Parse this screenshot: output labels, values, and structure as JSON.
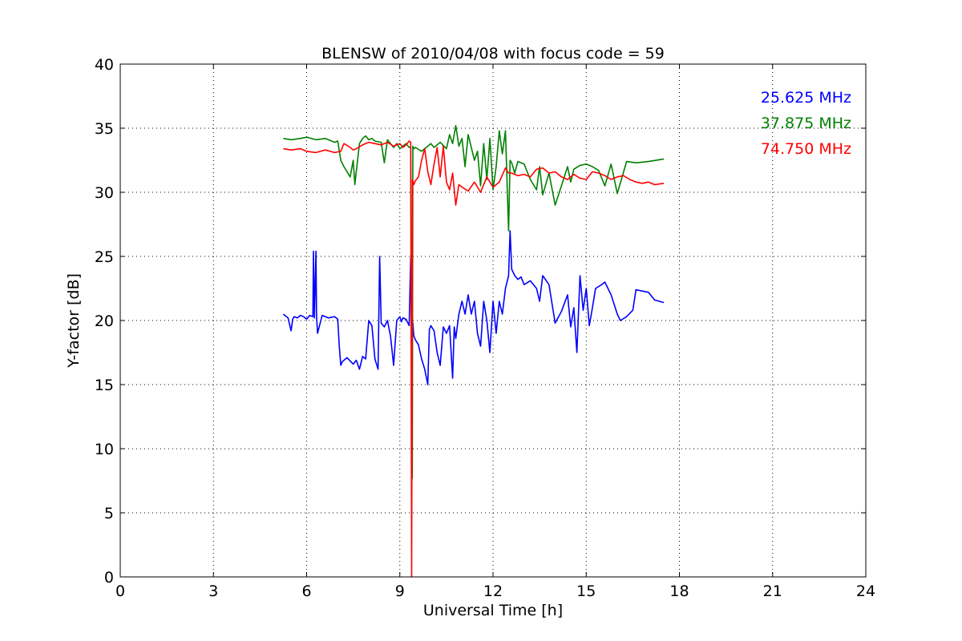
{
  "chart_data": {
    "type": "line",
    "title": "BLENSW of 2010/04/08 with focus code = 59",
    "xlabel": "Universal Time [h]",
    "ylabel": "Y-factor [dB]",
    "xlim": [
      0,
      24
    ],
    "ylim": [
      0,
      40
    ],
    "xticks": [
      0,
      3,
      6,
      9,
      12,
      15,
      18,
      21,
      24
    ],
    "yticks": [
      0,
      5,
      10,
      15,
      20,
      25,
      30,
      35,
      40
    ],
    "grid": true,
    "legend_position": "top-right",
    "series": [
      {
        "name": "25.625 MHz",
        "color": "#0000ff",
        "x": [
          5.25,
          5.4,
          5.5,
          5.55,
          5.6,
          5.7,
          5.8,
          5.9,
          6.0,
          6.1,
          6.2,
          6.22,
          6.25,
          6.3,
          6.32,
          6.35,
          6.5,
          6.7,
          6.9,
          7.0,
          7.05,
          7.1,
          7.15,
          7.3,
          7.5,
          7.6,
          7.7,
          7.8,
          7.9,
          8.0,
          8.1,
          8.2,
          8.3,
          8.35,
          8.4,
          8.5,
          8.6,
          8.7,
          8.8,
          8.9,
          9.0,
          9.05,
          9.1,
          9.2,
          9.3,
          9.35,
          9.4,
          9.42,
          9.45,
          9.5,
          9.6,
          9.7,
          9.8,
          9.9,
          9.95,
          10.0,
          10.05,
          10.1,
          10.2,
          10.3,
          10.4,
          10.5,
          10.6,
          10.7,
          10.75,
          10.8,
          10.9,
          11.0,
          11.1,
          11.2,
          11.3,
          11.4,
          11.5,
          11.6,
          11.7,
          11.8,
          11.9,
          12.0,
          12.1,
          12.2,
          12.3,
          12.4,
          12.5,
          12.55,
          12.6,
          12.7,
          12.8,
          12.9,
          13.0,
          13.2,
          13.4,
          13.5,
          13.6,
          13.8,
          14.0,
          14.2,
          14.4,
          14.5,
          14.6,
          14.7,
          14.8,
          14.9,
          15.0,
          15.1,
          15.2,
          15.3,
          15.5,
          15.6,
          15.8,
          16.0,
          16.1,
          16.3,
          16.5,
          16.6,
          16.8,
          17.0,
          17.2,
          17.5
        ],
        "y": [
          20.5,
          20.2,
          19.2,
          20.1,
          20.3,
          20.2,
          20.4,
          20.3,
          20.1,
          20.4,
          20.3,
          25.4,
          20.2,
          25.4,
          20.3,
          19.0,
          20.4,
          20.2,
          20.3,
          20.1,
          18.0,
          16.5,
          16.8,
          17.1,
          16.6,
          16.9,
          16.2,
          17.2,
          17.0,
          20.0,
          19.6,
          17.0,
          16.2,
          25.0,
          19.8,
          19.5,
          20.0,
          18.8,
          16.5,
          20.0,
          20.3,
          19.9,
          20.2,
          20.1,
          19.6,
          24.9,
          20.0,
          19.8,
          18.8,
          18.5,
          18.1,
          17.0,
          16.2,
          15.0,
          19.3,
          19.6,
          19.4,
          19.2,
          17.5,
          16.5,
          19.5,
          19.0,
          19.6,
          15.5,
          19.5,
          18.6,
          20.5,
          21.5,
          20.5,
          22.0,
          20.5,
          21.5,
          19.0,
          18.0,
          21.5,
          20.0,
          17.5,
          21.5,
          19.0,
          21.5,
          20.5,
          22.5,
          23.5,
          27.0,
          24.0,
          23.5,
          23.2,
          23.4,
          22.8,
          23.1,
          22.5,
          21.5,
          23.5,
          22.8,
          19.8,
          20.7,
          22.0,
          19.5,
          21.0,
          17.5,
          23.5,
          20.8,
          22.5,
          19.6,
          21.0,
          22.5,
          22.8,
          23.0,
          22.0,
          20.5,
          20.0,
          20.3,
          20.8,
          22.4,
          22.3,
          22.2,
          21.6,
          21.4
        ]
      },
      {
        "name": "37.875 MHz",
        "color": "#008000",
        "x": [
          5.25,
          5.5,
          5.8,
          6.0,
          6.3,
          6.6,
          6.9,
          7.0,
          7.1,
          7.2,
          7.4,
          7.5,
          7.55,
          7.7,
          7.8,
          7.9,
          8.0,
          8.1,
          8.2,
          8.4,
          8.5,
          8.6,
          8.7,
          8.8,
          8.9,
          9.0,
          9.1,
          9.2,
          9.3,
          9.35,
          9.4,
          9.42,
          9.45,
          9.5,
          9.7,
          9.9,
          10.0,
          10.1,
          10.3,
          10.5,
          10.6,
          10.7,
          10.8,
          10.9,
          11.0,
          11.1,
          11.2,
          11.4,
          11.5,
          11.6,
          11.7,
          11.8,
          11.9,
          12.0,
          12.1,
          12.2,
          12.3,
          12.4,
          12.5,
          12.55,
          12.6,
          12.7,
          12.8,
          13.0,
          13.2,
          13.4,
          13.5,
          13.6,
          13.8,
          14.0,
          14.2,
          14.4,
          14.5,
          14.6,
          14.8,
          15.0,
          15.2,
          15.4,
          15.6,
          15.8,
          16.0,
          16.3,
          16.6,
          17.0,
          17.5
        ],
        "y": [
          34.2,
          34.1,
          34.2,
          34.3,
          34.1,
          34.2,
          33.9,
          34.0,
          32.5,
          32.0,
          31.2,
          32.5,
          30.6,
          33.8,
          34.2,
          34.4,
          34.1,
          34.2,
          34.0,
          33.9,
          32.3,
          34.1,
          33.8,
          33.5,
          33.8,
          33.4,
          33.6,
          33.8,
          33.5,
          33.5,
          7.7,
          33.6,
          33.4,
          33.5,
          33.2,
          33.6,
          33.8,
          33.5,
          33.9,
          33.4,
          34.5,
          33.8,
          35.2,
          33.6,
          34.2,
          32.0,
          34.5,
          32.5,
          33.2,
          30.5,
          33.8,
          31.0,
          34.2,
          30.2,
          32.0,
          34.8,
          33.0,
          34.8,
          27.0,
          32.5,
          32.3,
          31.5,
          32.4,
          32.2,
          31.0,
          30.2,
          32.0,
          29.8,
          31.5,
          29.0,
          30.5,
          32.0,
          30.8,
          31.8,
          32.1,
          32.2,
          32.0,
          31.7,
          30.5,
          32.2,
          29.9,
          32.4,
          32.3,
          32.4,
          32.6
        ]
      },
      {
        "name": "74.750 MHz",
        "color": "#ff0000",
        "x": [
          5.25,
          5.5,
          5.8,
          6.0,
          6.3,
          6.6,
          6.9,
          7.1,
          7.2,
          7.4,
          7.5,
          7.6,
          7.8,
          8.0,
          8.2,
          8.4,
          8.6,
          8.8,
          9.0,
          9.1,
          9.2,
          9.3,
          9.35,
          9.38,
          9.41,
          9.45,
          9.5,
          9.6,
          9.7,
          9.8,
          9.9,
          10.0,
          10.1,
          10.2,
          10.3,
          10.4,
          10.5,
          10.6,
          10.7,
          10.8,
          10.9,
          11.0,
          11.2,
          11.4,
          11.6,
          11.8,
          12.0,
          12.2,
          12.4,
          12.5,
          12.6,
          12.8,
          13.0,
          13.2,
          13.4,
          13.6,
          13.8,
          14.0,
          14.2,
          14.4,
          14.6,
          14.8,
          15.0,
          15.2,
          15.4,
          15.6,
          15.8,
          16.0,
          16.2,
          16.4,
          16.6,
          16.8,
          17.0,
          17.2,
          17.5
        ],
        "y": [
          33.4,
          33.3,
          33.4,
          33.2,
          33.1,
          33.3,
          33.1,
          33.2,
          33.8,
          33.5,
          33.3,
          33.4,
          33.7,
          33.9,
          33.8,
          33.7,
          33.9,
          33.6,
          33.8,
          33.5,
          33.7,
          34.0,
          33.9,
          0.0,
          31.0,
          30.6,
          30.9,
          31.2,
          32.5,
          33.4,
          31.6,
          30.6,
          32.2,
          33.5,
          31.2,
          33.6,
          30.8,
          30.2,
          31.5,
          29.0,
          30.6,
          30.4,
          30.1,
          30.8,
          30.0,
          31.2,
          30.4,
          30.8,
          31.9,
          31.5,
          31.5,
          31.3,
          31.4,
          31.2,
          31.8,
          31.9,
          31.5,
          31.6,
          31.2,
          31.0,
          31.4,
          31.1,
          31.0,
          31.6,
          31.5,
          31.3,
          31.0,
          31.2,
          31.3,
          31.0,
          30.8,
          30.7,
          30.8,
          30.6,
          30.7
        ]
      }
    ]
  }
}
